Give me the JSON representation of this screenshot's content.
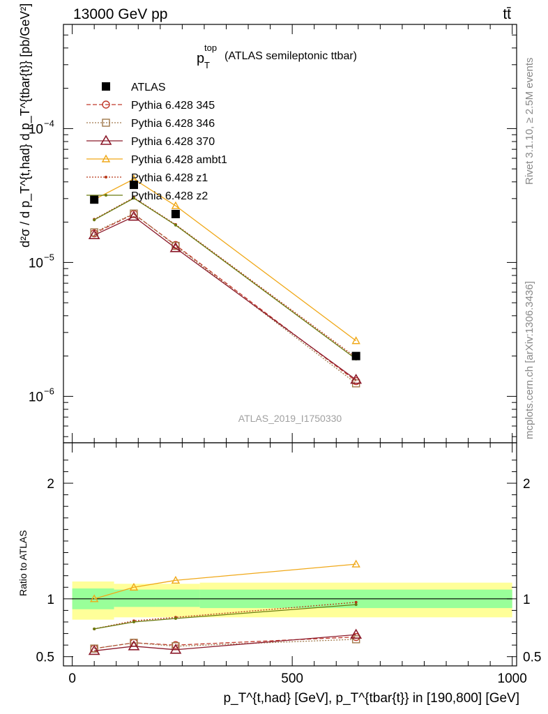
{
  "header": {
    "left": "13000 GeV pp",
    "right": "tt̄"
  },
  "plot_title": {
    "main": "p",
    "sub": "T",
    "sup": "top",
    "rest": "(ATLAS semileptonic ttbar)"
  },
  "analysis_id": "ATLAS_2019_I1750330",
  "side_text": {
    "rivet": "Rivet 3.1.10, ≥ 2.5M events",
    "mcplots": "mcplots.cern.ch [arXiv:1306.3436]"
  },
  "axes": {
    "ylabel_top": "d²σ / d p_T^{t,had} d p_T^{tbar{t}} [pb/GeV²]",
    "ylabel_bottom": "Ratio to ATLAS",
    "xlabel": "p_T^{t,had} [GeV], p_T^{tbar{t}} in [190,800] [GeV]"
  },
  "colors": {
    "atlas": "#000000",
    "p345": "#c0392b",
    "p346": "#a0784a",
    "p370": "#8b1a2b",
    "ambt1": "#f0a818",
    "z1": "#b83818",
    "z2": "#6b7a10",
    "band_inner": "#99ff99",
    "band_outer": "#ffff99"
  },
  "chart_data": [
    {
      "type": "scatter",
      "title": "p_T^top (ATLAS semileptonic ttbar)",
      "x_unit": "GeV",
      "xlim": [
        -20,
        1010
      ],
      "ylim": [
        4.5e-07,
        0.0006
      ],
      "y_scale": "log",
      "y_ticks": [
        {
          "value": 1e-06,
          "base": "10",
          "exp": "−6"
        },
        {
          "value": 1e-05,
          "base": "10",
          "exp": "−5"
        },
        {
          "value": 0.0001,
          "base": "10",
          "exp": "−4"
        }
      ],
      "legend_position": "top-left",
      "x": [
        50,
        140,
        235,
        645
      ],
      "series": [
        {
          "name": "ATLAS",
          "style": "data",
          "values": [
            2.95e-05,
            3.8e-05,
            2.3e-05,
            2e-06
          ]
        },
        {
          "name": "Pythia 6.428 345",
          "style": "circle-dashed",
          "values": [
            1.65e-05,
            2.3e-05,
            1.35e-05,
            1.3e-06
          ]
        },
        {
          "name": "Pythia 6.428 346",
          "style": "square-dotted",
          "values": [
            1.68e-05,
            2.32e-05,
            1.33e-05,
            1.25e-06
          ]
        },
        {
          "name": "Pythia 6.428 370",
          "style": "triangle-solid",
          "values": [
            1.6e-05,
            2.2e-05,
            1.28e-05,
            1.33e-06
          ]
        },
        {
          "name": "Pythia 6.428 ambt1",
          "style": "triangle-solid-light",
          "values": [
            2.95e-05,
            4.2e-05,
            2.65e-05,
            2.6e-06
          ]
        },
        {
          "name": "Pythia 6.428 z1",
          "style": "dot-dotted",
          "values": [
            2.1e-05,
            3.05e-05,
            1.92e-05,
            1.95e-06
          ]
        },
        {
          "name": "Pythia 6.428 z2",
          "style": "dot-solid",
          "values": [
            2.08e-05,
            3.02e-05,
            1.9e-05,
            1.9e-06
          ]
        }
      ]
    },
    {
      "type": "line",
      "ylabel": "Ratio to ATLAS",
      "xlim": [
        -20,
        1010
      ],
      "ylim": [
        0.42,
        2.35
      ],
      "x_ticks": [
        0,
        500,
        1000
      ],
      "y_ticks": [
        0.5,
        1,
        2
      ],
      "bins": [
        {
          "lo": 0,
          "hi": 95,
          "inner": [
            0.91,
            1.09
          ],
          "outer": [
            0.82,
            1.15
          ]
        },
        {
          "lo": 95,
          "hi": 190,
          "inner": [
            0.93,
            1.08
          ],
          "outer": [
            0.84,
            1.13
          ]
        },
        {
          "lo": 190,
          "hi": 290,
          "inner": [
            0.93,
            1.08
          ],
          "outer": [
            0.84,
            1.13
          ]
        },
        {
          "lo": 290,
          "hi": 1000,
          "inner": [
            0.92,
            1.08
          ],
          "outer": [
            0.84,
            1.14
          ]
        }
      ],
      "x": [
        50,
        140,
        235,
        645
      ],
      "series": [
        {
          "name": "Pythia 6.428 345",
          "values": [
            0.57,
            0.62,
            0.6,
            0.67
          ]
        },
        {
          "name": "Pythia 6.428 346",
          "values": [
            0.57,
            0.62,
            0.59,
            0.65
          ]
        },
        {
          "name": "Pythia 6.428 370",
          "values": [
            0.55,
            0.59,
            0.56,
            0.69
          ]
        },
        {
          "name": "Pythia 6.428 ambt1",
          "values": [
            1.0,
            1.1,
            1.16,
            1.3
          ]
        },
        {
          "name": "Pythia 6.428 z1",
          "values": [
            0.74,
            0.81,
            0.84,
            0.97
          ]
        },
        {
          "name": "Pythia 6.428 z2",
          "values": [
            0.74,
            0.8,
            0.83,
            0.95
          ]
        }
      ]
    }
  ]
}
